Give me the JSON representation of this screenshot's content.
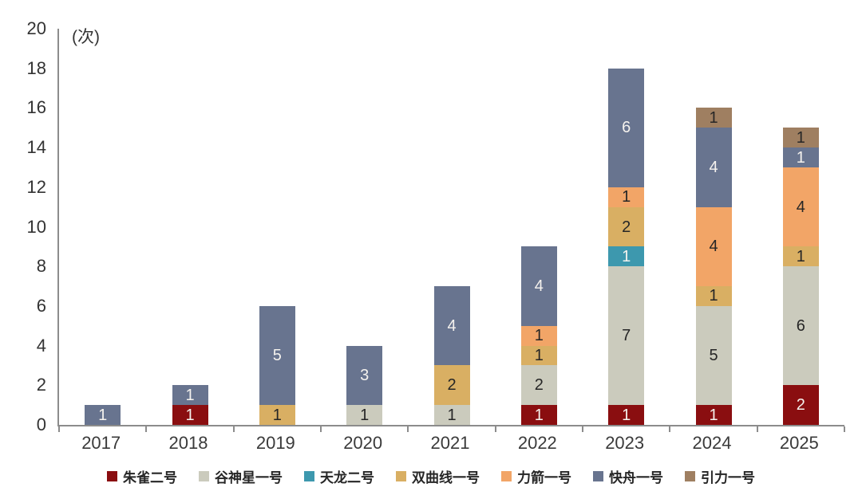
{
  "chart_data": {
    "type": "bar",
    "stacked": true,
    "unit_label": "(次)",
    "categories": [
      "2017",
      "2018",
      "2019",
      "2020",
      "2021",
      "2022",
      "2023",
      "2024",
      "2025"
    ],
    "series": [
      {
        "name": "朱雀二号",
        "color": "#8a0e10",
        "label_color": "#f5f2ee",
        "values": [
          0,
          1,
          0,
          0,
          0,
          1,
          1,
          1,
          2
        ]
      },
      {
        "name": "谷神星一号",
        "color": "#cbcbbd",
        "label_color": "#262626",
        "values": [
          0,
          0,
          0,
          1,
          1,
          2,
          7,
          5,
          6
        ]
      },
      {
        "name": "天龙二号",
        "color": "#3d98ae",
        "label_color": "#f5f2ee",
        "values": [
          0,
          0,
          0,
          0,
          0,
          0,
          1,
          0,
          0
        ]
      },
      {
        "name": "双曲线一号",
        "color": "#d9af63",
        "label_color": "#262626",
        "values": [
          0,
          0,
          1,
          0,
          2,
          1,
          2,
          1,
          1
        ]
      },
      {
        "name": "力箭一号",
        "color": "#f2a567",
        "label_color": "#262626",
        "values": [
          0,
          0,
          0,
          0,
          0,
          1,
          1,
          4,
          4
        ]
      },
      {
        "name": "快舟一号",
        "color": "#68748f",
        "label_color": "#f5f2ee",
        "values": [
          1,
          1,
          5,
          3,
          4,
          4,
          6,
          4,
          1
        ]
      },
      {
        "name": "引力一号",
        "color": "#9f7f61",
        "label_color": "#262626",
        "values": [
          0,
          0,
          0,
          0,
          0,
          0,
          0,
          1,
          1
        ]
      }
    ],
    "totals": [
      1,
      2,
      6,
      4,
      7,
      9,
      18,
      16,
      15
    ],
    "ylim": [
      0,
      20
    ],
    "yticks": [
      0,
      2,
      4,
      6,
      8,
      10,
      12,
      14,
      16,
      18,
      20
    ],
    "grid": false,
    "legend_position": "bottom",
    "axis_color": "#8c8c8c"
  }
}
